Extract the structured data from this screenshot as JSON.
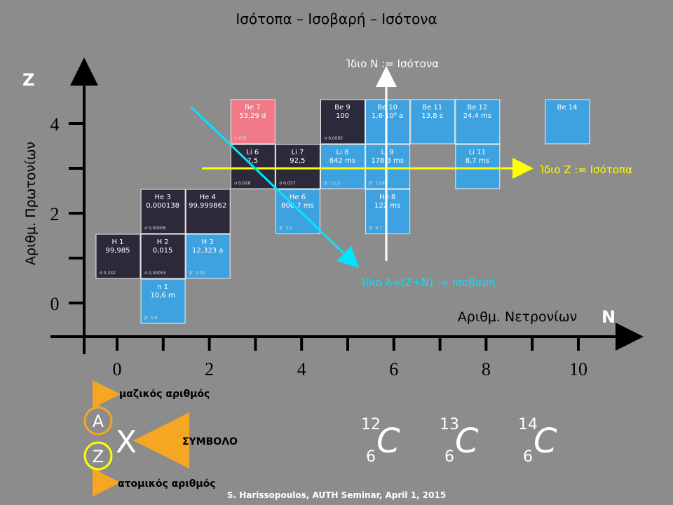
{
  "title": "Ισότοπα – Ισοβαρή – Ισότονα",
  "axes": {
    "y_letter": "Z",
    "x_letter": "N",
    "y_label": "Αριθμ. Πρωτονίων",
    "x_label": "Αριθμ. Νετρονίων",
    "x_ticks": [
      "0",
      "2",
      "4",
      "6",
      "8",
      "10"
    ],
    "y_ticks": [
      "0",
      "2",
      "4"
    ]
  },
  "nuclides": [
    {
      "name": "H 1",
      "value": "99,985",
      "note": "σ 0,332"
    },
    {
      "name": "H 2",
      "value": "0,015",
      "note": "σ 0,00053"
    },
    {
      "name": "H 3",
      "value": "12,323 a",
      "note": "β⁻ 0,02"
    },
    {
      "name": "n 1",
      "value": "10,6 m",
      "note": "β⁻ 0,8"
    },
    {
      "name": "He 3",
      "value": "0,000138",
      "note": "σ 0,00006"
    },
    {
      "name": "He 4",
      "value": "99,999862"
    },
    {
      "name": "He 6",
      "value": "806,7 ms",
      "note": "β⁻ 3,5"
    },
    {
      "name": "He 8",
      "value": "122 ms",
      "note": "β⁻ 9,7"
    },
    {
      "name": "Li 6",
      "value": "7,5",
      "note": "σ 0,028"
    },
    {
      "name": "Li 7",
      "value": "92,5",
      "note": "σ 0,037"
    },
    {
      "name": "Li 8",
      "value": "842 ms",
      "note": "β⁻ 12,5"
    },
    {
      "name": "Li 9",
      "value": "178,3 ms",
      "note": "β⁻ 13,6"
    },
    {
      "name": "Li 11",
      "value": "8,7 ms"
    },
    {
      "name": "Be 7",
      "value": "53,29 d",
      "note": "γ 478"
    },
    {
      "name": "Be 9",
      "value": "100",
      "note": "σ 0,0092"
    },
    {
      "name": "Be 10",
      "value": "1,6·10⁶ a"
    },
    {
      "name": "Be 11",
      "value": "13,8 s"
    },
    {
      "name": "Be 12",
      "value": "24,4 ms"
    },
    {
      "name": "Be 14"
    }
  ],
  "annotations": {
    "isotones": "Ίδιο Ν := Ισότονα",
    "isotopes": "Ίδιο Ζ := Ισότοπα",
    "isobars": "Ίδιο Α=(Ζ+Ν) := Ισοβαρή"
  },
  "legend": {
    "mass_label": "μαζικός αριθμός",
    "atomic_label": "ατομικός αριθμός",
    "symbol_label": "ΣΥΜΒΟΛΟ",
    "a": "A",
    "z": "Z",
    "x": "X"
  },
  "examples": [
    {
      "mass": "12",
      "atomic": "6",
      "symbol": "C"
    },
    {
      "mass": "13",
      "atomic": "6",
      "symbol": "C"
    },
    {
      "mass": "14",
      "atomic": "6",
      "symbol": "C"
    }
  ],
  "footer": "S. Harissopoulos, AUTH Seminar, April 1, 2015"
}
